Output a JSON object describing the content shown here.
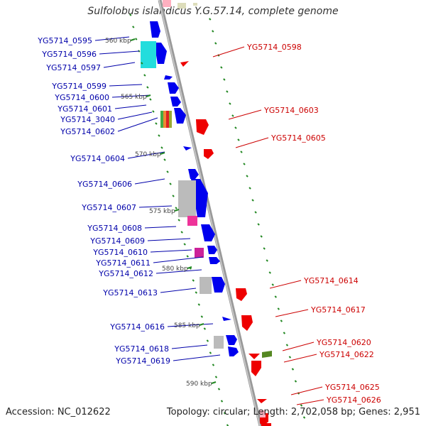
{
  "title": "Sulfolobus islandicus Y.G.57.14, complete genome",
  "footer": {
    "accession": "Accession: NC_012622",
    "topology": "Topology: circular; Length: 2,702,058 bp; Genes: 2,951"
  },
  "scale_labels": [
    "560 kbp",
    "565 kbp",
    "570 kbp",
    "575 kbp",
    "580 kbp",
    "585 kbp",
    "590 kbp"
  ],
  "left_labels": [
    "YG5714_0595",
    "YG5714_0596",
    "YG5714_0597",
    "YG5714_0599",
    "YG5714_0600",
    "YG5714_0601",
    "YG5714_3040",
    "YG5714_0602",
    "YG5714_0604",
    "YG5714_0606",
    "YG5714_0607",
    "YG5714_0608",
    "YG5714_0609",
    "YG5714_0610",
    "YG5714_0611",
    "YG5714_0612",
    "YG5714_0613",
    "YG5714_0616",
    "YG5714_0618",
    "YG5714_0619"
  ],
  "right_labels": [
    "YG5714_0598",
    "YG5714_0603",
    "YG5714_0605",
    "YG5714_0614",
    "YG5714_0617",
    "YG5714_0620",
    "YG5714_0622",
    "YG5714_0625",
    "YG5714_0626"
  ],
  "colors": {
    "forward_gene": "#0000ee",
    "reverse_gene": "#ee0000",
    "left_label": "#0000aa",
    "right_label": "#cc0000",
    "backbone": "#999999",
    "tick": "#228822",
    "cyan_feature": "#22dddd",
    "gray_feature": "#bbbbbb",
    "pink_feature": "#ee3399",
    "olive_feature": "#558822"
  }
}
